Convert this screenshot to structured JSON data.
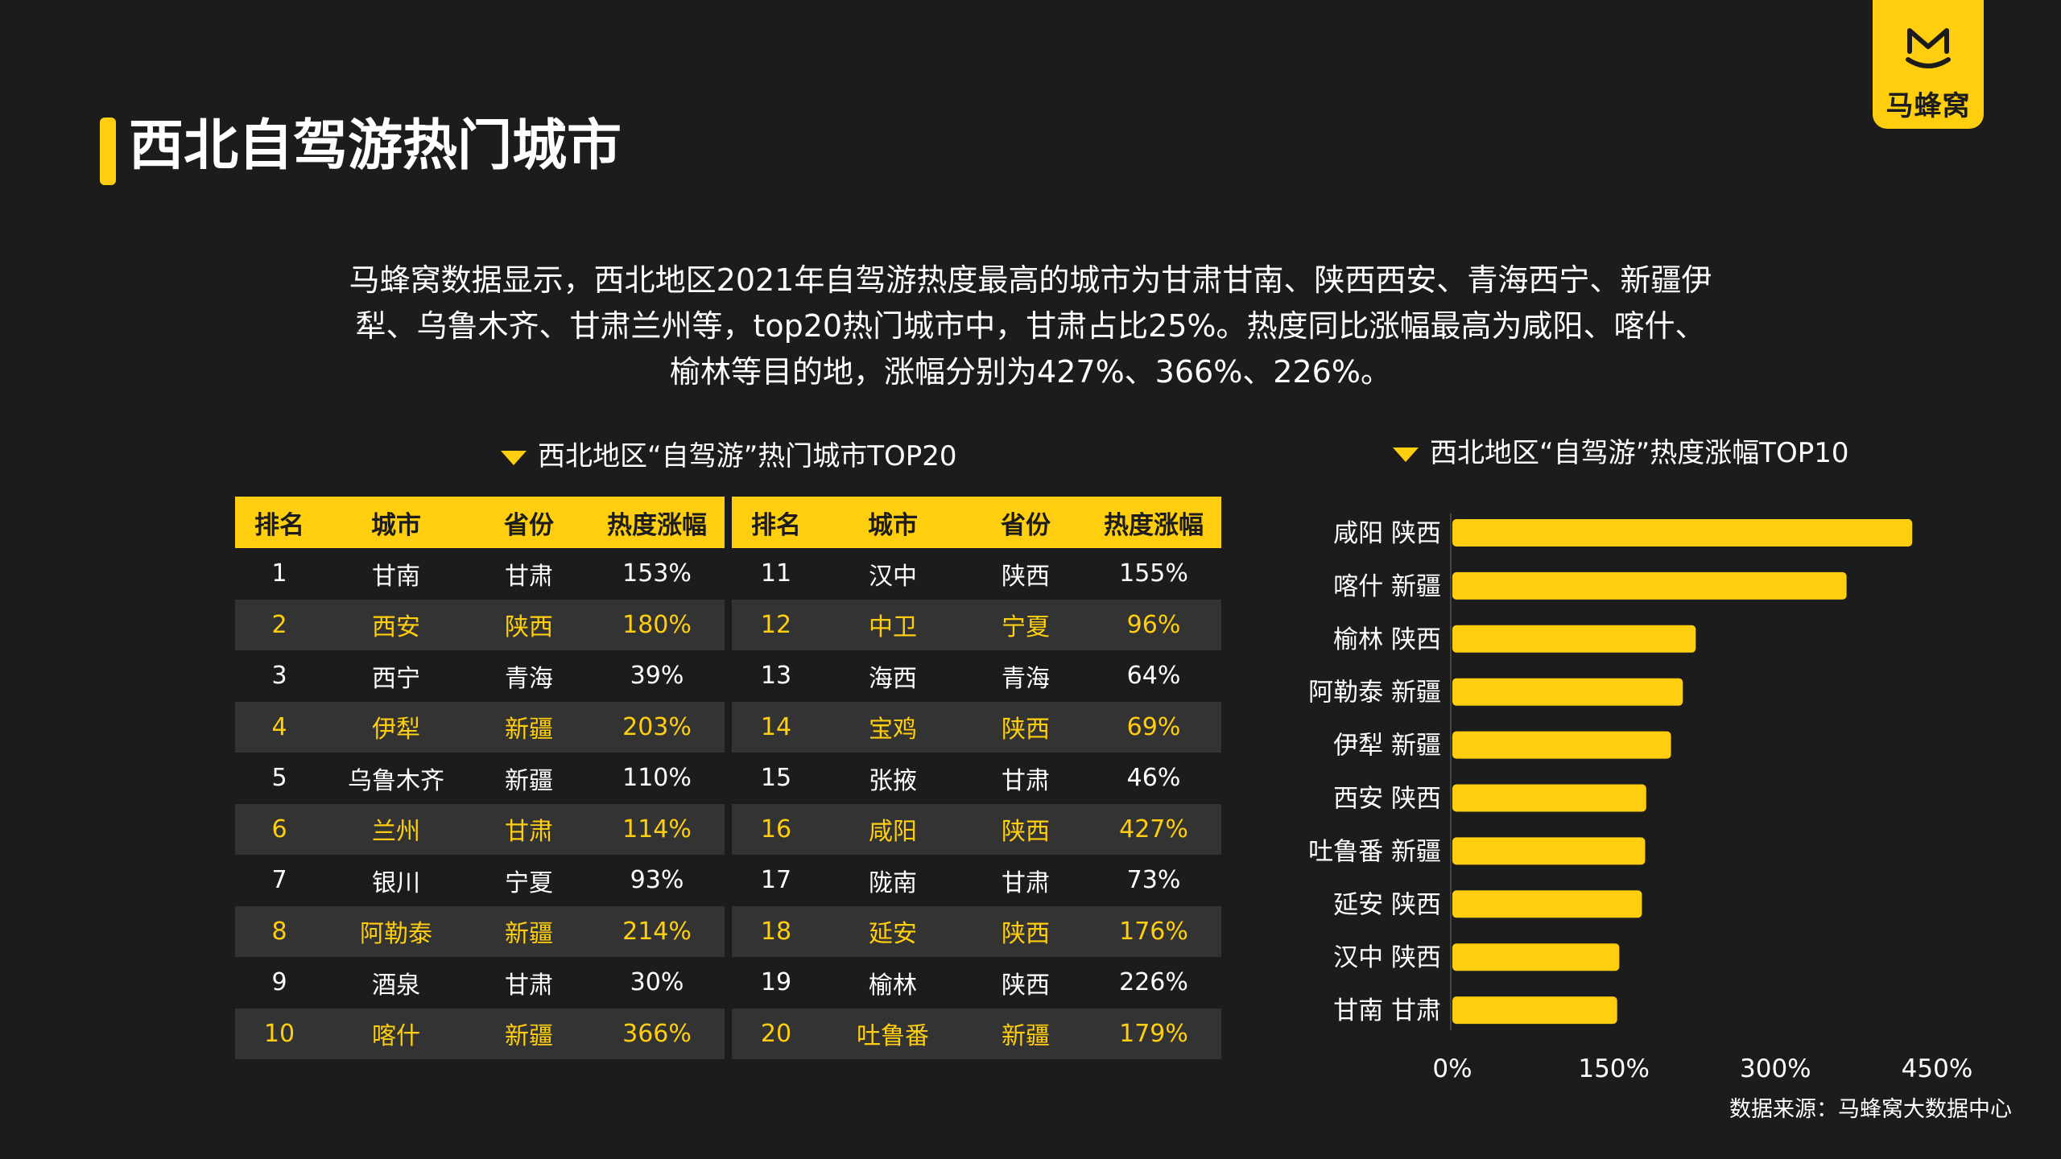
{
  "title": "西北自驾游热门城市",
  "logo_text": "马蜂窝",
  "summary": [
    "马蜂窝数据显示，西北地区2021年自驾游热度最高的城市为甘肃甘南、陕西西安、青海西宁、新疆伊",
    "犁、乌鲁木齐、甘肃兰州等，top20热门城市中，甘肃占比25%。热度同比涨幅最高为咸阳、喀什、",
    "榆林等目的地，涨幅分别为427%、366%、226%。"
  ],
  "table_section_title": "西北地区“自驾游”热门城市TOP20",
  "table": {
    "headers": [
      "排名",
      "城市",
      "省份",
      "热度涨幅"
    ],
    "left": [
      [
        "1",
        "甘南",
        "甘肃",
        "153%"
      ],
      [
        "2",
        "西安",
        "陕西",
        "180%"
      ],
      [
        "3",
        "西宁",
        "青海",
        "39%"
      ],
      [
        "4",
        "伊犁",
        "新疆",
        "203%"
      ],
      [
        "5",
        "乌鲁木齐",
        "新疆",
        "110%"
      ],
      [
        "6",
        "兰州",
        "甘肃",
        "114%"
      ],
      [
        "7",
        "银川",
        "宁夏",
        "93%"
      ],
      [
        "8",
        "阿勒泰",
        "新疆",
        "214%"
      ],
      [
        "9",
        "酒泉",
        "甘肃",
        "30%"
      ],
      [
        "10",
        "喀什",
        "新疆",
        "366%"
      ]
    ],
    "right": [
      [
        "11",
        "汉中",
        "陕西",
        "155%"
      ],
      [
        "12",
        "中卫",
        "宁夏",
        "96%"
      ],
      [
        "13",
        "海西",
        "青海",
        "64%"
      ],
      [
        "14",
        "宝鸡",
        "陕西",
        "69%"
      ],
      [
        "15",
        "张掖",
        "甘肃",
        "46%"
      ],
      [
        "16",
        "咸阳",
        "陕西",
        "427%"
      ],
      [
        "17",
        "陇南",
        "甘肃",
        "73%"
      ],
      [
        "18",
        "延安",
        "陕西",
        "176%"
      ],
      [
        "19",
        "榆林",
        "陕西",
        "226%"
      ],
      [
        "20",
        "吐鲁番",
        "新疆",
        "179%"
      ]
    ]
  },
  "source": "数据来源：马蜂窝大数据中心",
  "colors": {
    "accent": "#ffcf0f",
    "background": "#1c1c1c",
    "row_alt": "#333333"
  },
  "chart_data": {
    "type": "bar",
    "orientation": "horizontal",
    "title": "西北地区“自驾游”热度涨幅TOP10",
    "categories": [
      "咸阳 陕西",
      "喀什 新疆",
      "榆林 陕西",
      "阿勒泰 新疆",
      "伊犁 新疆",
      "西安 陕西",
      "吐鲁番 新疆",
      "延安 陕西",
      "汉中 陕西",
      "甘南 甘肃"
    ],
    "values": [
      427,
      366,
      226,
      214,
      203,
      180,
      179,
      176,
      155,
      153
    ],
    "xlim": [
      0,
      450
    ],
    "xticks": [
      "0%",
      "150%",
      "300%",
      "450%"
    ],
    "grid": false,
    "color": "#ffcf0f"
  }
}
